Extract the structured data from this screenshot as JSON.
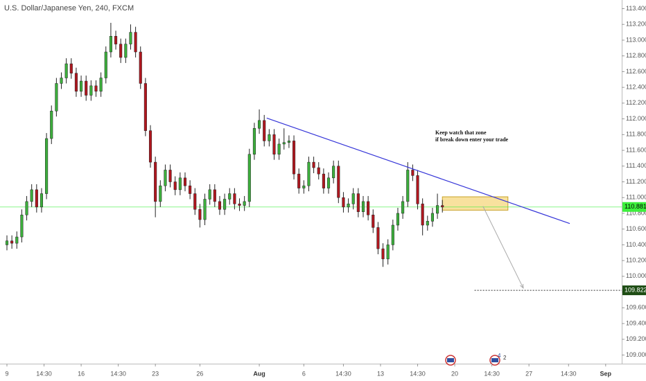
{
  "chart_data": {
    "type": "candlestick",
    "title": "U.S. Dollar/Japanese Yen, 240, FXCM",
    "up_color": "#3cae3c",
    "down_color": "#b0171f",
    "wick_color": "#222222",
    "x": [
      0,
      2,
      4,
      6,
      8,
      10,
      12,
      14,
      16,
      18,
      20,
      22,
      24,
      26,
      28,
      30,
      32,
      34,
      36,
      38,
      40,
      42,
      44,
      46,
      48,
      50,
      52,
      54,
      56,
      58,
      60,
      62,
      64,
      66,
      68,
      70,
      72,
      74,
      76,
      78,
      80,
      82,
      84,
      86,
      88,
      90,
      92,
      94,
      96,
      98,
      100,
      102,
      104,
      106,
      108,
      110,
      112,
      114,
      116,
      118,
      120,
      122,
      124,
      126,
      128,
      130,
      132,
      134,
      136,
      138,
      140,
      142,
      144,
      146,
      148,
      150,
      152,
      154,
      156,
      158,
      160,
      162,
      164,
      166,
      168,
      170,
      172,
      174,
      176
    ],
    "open": [
      110.4,
      110.45,
      110.42,
      110.5,
      110.78,
      110.95,
      111.1,
      110.88,
      111.05,
      111.75,
      112.1,
      112.45,
      112.52,
      112.7,
      112.58,
      112.35,
      112.48,
      112.3,
      112.42,
      112.35,
      112.52,
      112.85,
      113.05,
      112.95,
      112.78,
      112.95,
      113.1,
      112.85,
      112.45,
      111.85,
      111.45,
      110.95,
      111.15,
      111.35,
      111.2,
      111.1,
      111.25,
      111.15,
      111.05,
      110.85,
      110.72,
      110.98,
      111.1,
      110.95,
      110.85,
      110.98,
      111.05,
      110.92,
      110.9,
      110.95,
      111.55,
      111.88,
      111.98,
      111.72,
      111.8,
      111.55,
      111.68,
      111.7,
      111.72,
      111.3,
      111.12,
      111.15,
      111.45,
      111.38,
      111.3,
      111.12,
      111.25,
      111.4,
      111.0,
      110.88,
      110.92,
      111.05,
      110.82,
      110.95,
      110.78,
      110.62,
      110.35,
      110.22,
      110.4,
      110.65,
      110.8,
      110.95,
      111.35,
      111.28,
      110.92,
      110.65,
      110.7,
      110.8,
      110.9
    ],
    "high": [
      110.52,
      110.52,
      110.57,
      110.85,
      111.02,
      111.17,
      111.17,
      111.12,
      111.82,
      112.17,
      112.52,
      112.59,
      112.77,
      112.77,
      112.65,
      112.55,
      112.55,
      112.49,
      112.49,
      112.59,
      112.92,
      113.22,
      113.12,
      113.02,
      113.02,
      113.2,
      113.17,
      112.92,
      112.52,
      111.92,
      111.52,
      111.22,
      111.42,
      111.42,
      111.27,
      111.32,
      111.32,
      111.22,
      111.12,
      110.92,
      111.05,
      111.17,
      111.17,
      111.02,
      111.05,
      111.12,
      111.12,
      110.99,
      111.02,
      111.62,
      111.95,
      112.12,
      112.05,
      111.87,
      111.87,
      111.75,
      111.88,
      111.79,
      111.79,
      111.37,
      111.22,
      111.52,
      111.52,
      111.45,
      111.37,
      111.32,
      111.47,
      111.47,
      111.07,
      110.99,
      111.12,
      111.12,
      111.02,
      111.02,
      110.85,
      110.69,
      110.42,
      110.47,
      110.72,
      110.87,
      111.02,
      111.45,
      111.42,
      111.35,
      110.99,
      110.77,
      110.87,
      111.05,
      110.97
    ],
    "low": [
      110.33,
      110.35,
      110.35,
      110.43,
      110.71,
      110.88,
      110.81,
      110.81,
      110.98,
      111.68,
      112.03,
      112.38,
      112.45,
      112.51,
      112.28,
      112.28,
      112.23,
      112.23,
      112.28,
      112.28,
      112.45,
      112.78,
      112.88,
      112.71,
      112.71,
      112.88,
      112.78,
      112.38,
      111.78,
      111.38,
      110.75,
      110.88,
      111.08,
      111.13,
      111.03,
      111.03,
      111.08,
      110.98,
      110.78,
      110.62,
      110.65,
      110.91,
      110.88,
      110.78,
      110.78,
      110.91,
      110.85,
      110.83,
      110.83,
      110.88,
      111.48,
      111.81,
      111.65,
      111.65,
      111.48,
      111.48,
      111.61,
      111.63,
      111.23,
      111.05,
      111.05,
      111.08,
      111.31,
      111.23,
      111.05,
      111.05,
      111.18,
      110.93,
      110.81,
      110.81,
      110.85,
      110.75,
      110.75,
      110.71,
      110.55,
      110.28,
      110.12,
      110.15,
      110.33,
      110.58,
      110.73,
      110.88,
      111.21,
      110.85,
      110.52,
      110.58,
      110.63,
      110.73,
      110.81
    ],
    "close": [
      110.45,
      110.42,
      110.5,
      110.78,
      110.95,
      111.1,
      110.88,
      111.05,
      111.75,
      112.1,
      112.45,
      112.52,
      112.7,
      112.58,
      112.35,
      112.48,
      112.3,
      112.42,
      112.35,
      112.52,
      112.85,
      113.05,
      112.95,
      112.78,
      112.95,
      113.1,
      112.85,
      112.45,
      111.85,
      111.45,
      110.95,
      111.15,
      111.35,
      111.2,
      111.1,
      111.25,
      111.15,
      111.05,
      110.85,
      110.72,
      110.98,
      111.1,
      110.95,
      110.85,
      110.98,
      111.05,
      110.92,
      110.9,
      110.95,
      111.55,
      111.88,
      111.98,
      111.72,
      111.8,
      111.55,
      111.68,
      111.7,
      111.72,
      111.3,
      111.12,
      111.15,
      111.45,
      111.38,
      111.3,
      111.12,
      111.25,
      111.4,
      111.0,
      110.88,
      110.92,
      111.05,
      110.82,
      110.95,
      110.78,
      110.62,
      110.35,
      110.22,
      110.4,
      110.65,
      110.8,
      110.95,
      111.35,
      111.28,
      110.92,
      110.65,
      110.7,
      110.8,
      110.9,
      110.88
    ],
    "xlim": [
      -2.8,
      248.5
    ],
    "ylim": [
      108.89,
      113.51
    ],
    "xticks": [
      {
        "value": 0,
        "label": "9"
      },
      {
        "value": 15,
        "label": "14:30"
      },
      {
        "value": 30,
        "label": "16"
      },
      {
        "value": 45,
        "label": "14:30"
      },
      {
        "value": 60,
        "label": "23"
      },
      {
        "value": 78,
        "label": "26"
      },
      {
        "value": 102,
        "label": "Aug"
      },
      {
        "value": 120,
        "label": "6"
      },
      {
        "value": 136,
        "label": "14:30"
      },
      {
        "value": 151,
        "label": "13"
      },
      {
        "value": 166,
        "label": "14:30"
      },
      {
        "value": 181,
        "label": "20"
      },
      {
        "value": 196,
        "label": "14:30"
      },
      {
        "value": 211,
        "label": "27"
      },
      {
        "value": 227,
        "label": "14:30"
      },
      {
        "value": 242,
        "label": "Sep"
      }
    ],
    "yticks": [
      {
        "value": 109.0,
        "label": "109.000"
      },
      {
        "value": 109.2,
        "label": "109.200"
      },
      {
        "value": 109.4,
        "label": "109.400"
      },
      {
        "value": 109.6,
        "label": "109.600"
      },
      {
        "value": 109.8,
        "label": "109.800"
      },
      {
        "value": 110.0,
        "label": "110.000"
      },
      {
        "value": 110.2,
        "label": "110.200"
      },
      {
        "value": 110.4,
        "label": "110.400"
      },
      {
        "value": 110.6,
        "label": "110.600"
      },
      {
        "value": 110.8,
        "label": "110.800"
      },
      {
        "value": 111.0,
        "label": "111.000"
      },
      {
        "value": 111.2,
        "label": "111.200"
      },
      {
        "value": 111.4,
        "label": "111.400"
      },
      {
        "value": 111.6,
        "label": "111.600"
      },
      {
        "value": 111.8,
        "label": "111.800"
      },
      {
        "value": 112.0,
        "label": "112.000"
      },
      {
        "value": 112.2,
        "label": "112.200"
      },
      {
        "value": 112.4,
        "label": "112.400"
      },
      {
        "value": 112.6,
        "label": "112.600"
      },
      {
        "value": 112.8,
        "label": "112.800"
      },
      {
        "value": 113.0,
        "label": "113.000"
      },
      {
        "value": 113.2,
        "label": "113.200"
      },
      {
        "value": 113.4,
        "label": "113.400"
      }
    ],
    "last_price": {
      "value": 110.881,
      "color": "#3cf03c"
    },
    "target_level": {
      "value": 109.822,
      "x": [
        189,
        248.5
      ],
      "color": "#1e4d14"
    },
    "trendline": {
      "x": [
        105,
        227.5
      ],
      "y": [
        112.01,
        110.67
      ],
      "color": "#3434d8"
    },
    "zone": {
      "x": [
        176,
        202.5
      ],
      "y": [
        110.84,
        111.01
      ],
      "color": "#f5d77e"
    },
    "arrow": {
      "x": [
        192.4,
        208.7
      ],
      "y": [
        110.89,
        109.85
      ]
    },
    "annotations": [
      "Keep watch that zone",
      "if break down enter your trade"
    ],
    "event_counts": [
      "4",
      "2"
    ]
  }
}
